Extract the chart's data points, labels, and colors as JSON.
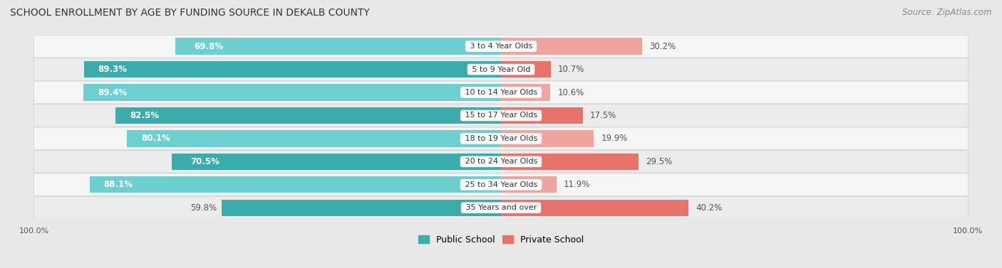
{
  "title": "SCHOOL ENROLLMENT BY AGE BY FUNDING SOURCE IN DEKALB COUNTY",
  "source": "Source: ZipAtlas.com",
  "categories": [
    "3 to 4 Year Olds",
    "5 to 9 Year Old",
    "10 to 14 Year Olds",
    "15 to 17 Year Olds",
    "18 to 19 Year Olds",
    "20 to 24 Year Olds",
    "25 to 34 Year Olds",
    "35 Years and over"
  ],
  "public_values": [
    69.8,
    89.3,
    89.4,
    82.5,
    80.1,
    70.5,
    88.1,
    59.8
  ],
  "private_values": [
    30.2,
    10.7,
    10.6,
    17.5,
    19.9,
    29.5,
    11.9,
    40.2
  ],
  "public_color_dark": "#3aacac",
  "public_color_light": "#6dcfcf",
  "private_color_dark": "#e8736a",
  "private_color_light": "#f0a49e",
  "bg_color": "#e8e8e8",
  "row_bg": "#f2f2f2",
  "title_fontsize": 10,
  "source_fontsize": 8.5,
  "bar_label_fontsize": 8.5,
  "category_fontsize": 8,
  "axis_label_fontsize": 8,
  "legend_fontsize": 9
}
